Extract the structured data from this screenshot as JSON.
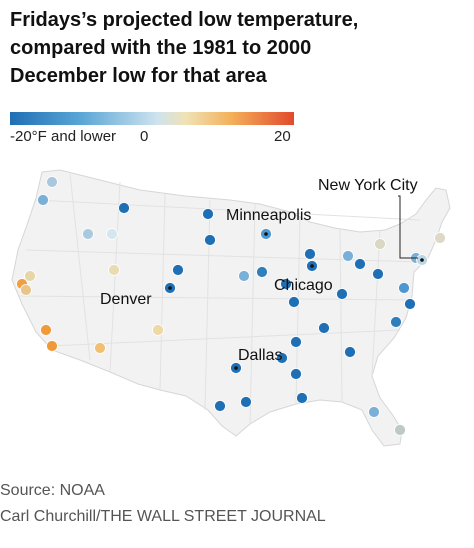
{
  "title_lines": [
    "Fridays’s projected low temperature,",
    "compared with the 1981 to 2000",
    "December low for that area"
  ],
  "legend": {
    "min_label": "-20°F and lower",
    "mid_label": "0",
    "max_label": "20",
    "colors": [
      "#1f6fb4",
      "#5aa6d6",
      "#cfe3ee",
      "#f0e2b4",
      "#f3b05a",
      "#e24a2c"
    ]
  },
  "cities": [
    {
      "name": "New York City"
    },
    {
      "name": "Minneapolis"
    },
    {
      "name": "Chicago"
    },
    {
      "name": "Denver"
    },
    {
      "name": "Dallas"
    }
  ],
  "source": "Source: NOAA",
  "credit": "Carl Churchill/THE WALL STREET JOURNAL"
}
